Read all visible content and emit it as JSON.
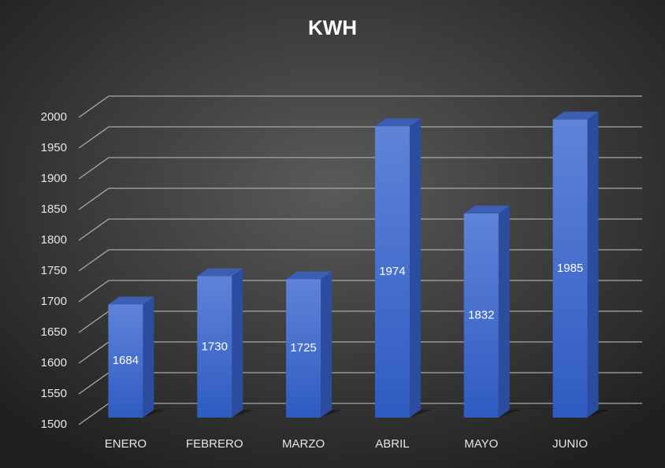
{
  "chart_data": {
    "type": "bar3d",
    "title": "KWH",
    "categories": [
      "ENERO",
      "FEBRERO",
      "MARZO",
      "ABRIL",
      "MAYO",
      "JUNIO"
    ],
    "values": [
      1684,
      1730,
      1725,
      1974,
      1832,
      1985
    ],
    "color": "#3f68cc",
    "ylim": [
      1500,
      2000
    ],
    "yticks": [
      1500,
      1550,
      1600,
      1650,
      1700,
      1750,
      1800,
      1850,
      1900,
      1950,
      2000
    ],
    "grid": true
  }
}
